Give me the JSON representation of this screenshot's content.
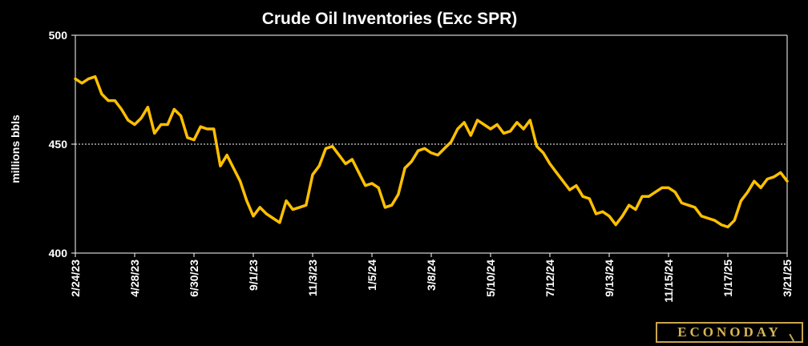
{
  "chart_data": {
    "type": "line",
    "title": "Crude Oil Inventories (Exc SPR)",
    "xlabel": "",
    "ylabel": "millions bbls",
    "ylim": [
      400,
      500
    ],
    "yticks": [
      400,
      450,
      500
    ],
    "xtick_labels": [
      "2/24/23",
      "4/28/23",
      "6/30/23",
      "9/1/23",
      "11/3/23",
      "1/5/24",
      "3/8/24",
      "5/10/24",
      "7/12/24",
      "9/13/24",
      "11/15/24",
      "1/17/25",
      "3/21/25"
    ],
    "reference_line": 450,
    "grid": false,
    "legend": "none",
    "color": "#ffc000",
    "series": [
      {
        "values": [
          480,
          478,
          480,
          481,
          473,
          470,
          470,
          466,
          461,
          459,
          462,
          467,
          455,
          459,
          459,
          466,
          463,
          453,
          452,
          458,
          457,
          457,
          440,
          445,
          439,
          433,
          424,
          417,
          421,
          418,
          416,
          414,
          424,
          420,
          421,
          422,
          436,
          440,
          448,
          449,
          445,
          441,
          443,
          437,
          431,
          432,
          430,
          421,
          422,
          427,
          439,
          442,
          447,
          448,
          446,
          445,
          448,
          451,
          457,
          460,
          454,
          461,
          459,
          457,
          459,
          455,
          456,
          460,
          457,
          461,
          449,
          446,
          441,
          437,
          433,
          429,
          431,
          426,
          425,
          418,
          419,
          417,
          413,
          417,
          422,
          420,
          426,
          426,
          428,
          430,
          430,
          428,
          423,
          422,
          421,
          417,
          416,
          415,
          413,
          412,
          415,
          424,
          428,
          433,
          430,
          434,
          435,
          437,
          433
        ]
      }
    ]
  },
  "logo": {
    "text": "ECONODAY"
  },
  "colors": {
    "background": "#000000",
    "line": "#ffc000",
    "axis": "#ffffff",
    "logo": "#d8b656"
  }
}
